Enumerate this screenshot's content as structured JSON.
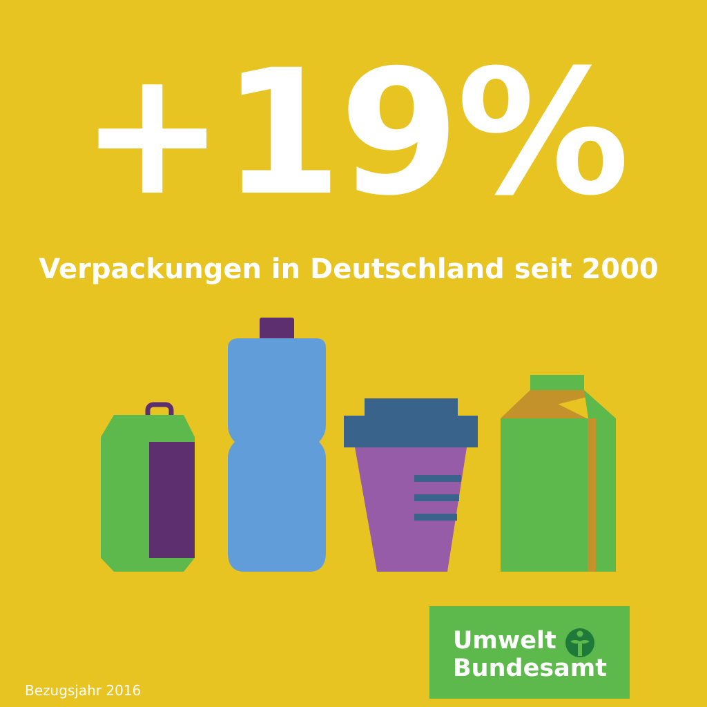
{
  "headline": "+19%",
  "subtitle": "Verpackungen in Deutschland seit 2000",
  "illustration": {
    "icons": [
      "drink-can-icon",
      "plastic-bottle-icon",
      "coffee-cup-icon",
      "beverage-carton-icon"
    ]
  },
  "logo": {
    "line1": "Umwelt",
    "line2": "Bundesamt",
    "icon": "umweltbundesamt-emblem-icon"
  },
  "footnote": "Bezugsjahr 2016",
  "colors": {
    "background": "#E8C423",
    "text": "#FFFFFF",
    "green": "#5DB94B",
    "purple_dark": "#5E2F6E",
    "blue": "#619ED9",
    "navy": "#3A638B",
    "purple_light": "#965CA8",
    "ochre": "#C4922B"
  }
}
